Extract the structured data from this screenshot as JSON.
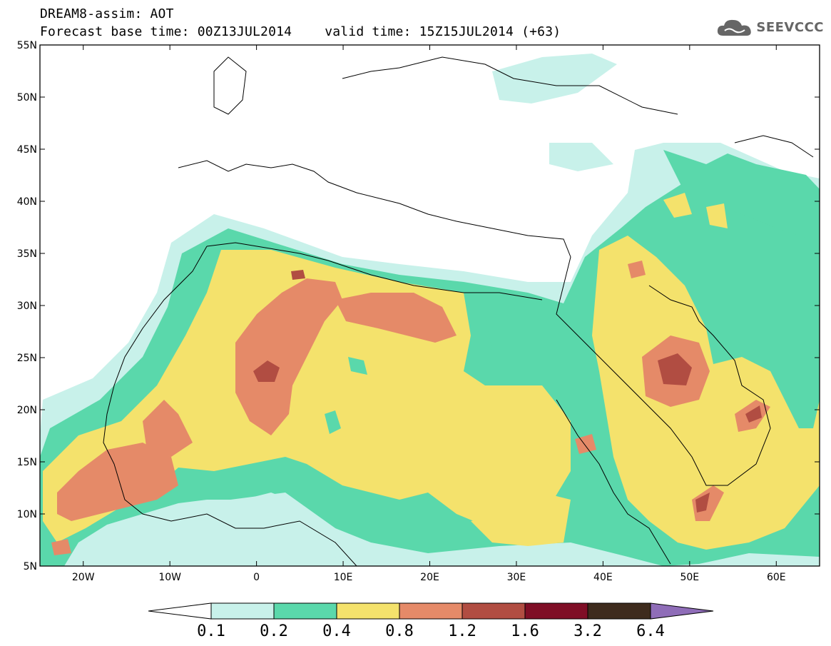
{
  "header": {
    "title": "DREAM8-assim: AOT",
    "base_time": "Forecast base time: 00Z13JUL2014",
    "valid_time": "valid time: 15Z15JUL2014 (+63)"
  },
  "logo": {
    "text": "SEEVCCC",
    "icon": "cloud-icon"
  },
  "map": {
    "lat_labels": [
      "55N",
      "50N",
      "45N",
      "40N",
      "35N",
      "30N",
      "25N",
      "20N",
      "15N",
      "10N",
      "5N"
    ],
    "lon_labels": [
      "20W",
      "10W",
      "0",
      "10E",
      "20E",
      "30E",
      "40E",
      "50E",
      "60E"
    ],
    "lat_range": [
      5,
      55
    ],
    "lon_range": [
      -25,
      65
    ]
  },
  "colorbar": {
    "colors": [
      "#ffffff",
      "#c8f1ea",
      "#5ad8ab",
      "#f4e26c",
      "#e58a68",
      "#b14d42",
      "#7f0e26",
      "#3e2b1d",
      "#8f6db8"
    ],
    "ticks": [
      "0.1",
      "0.2",
      "0.4",
      "0.8",
      "1.2",
      "1.6",
      "3.2",
      "6.4"
    ]
  }
}
